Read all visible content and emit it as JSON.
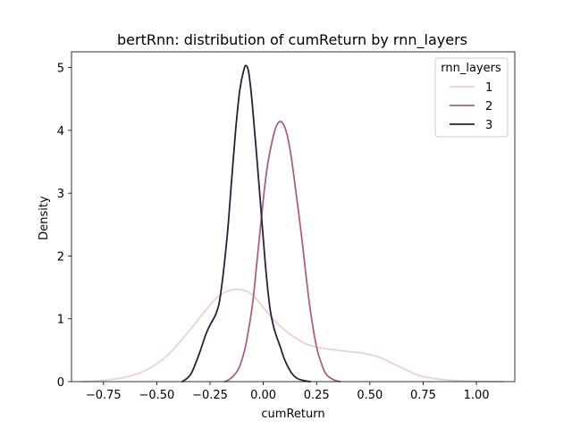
{
  "chart_data": {
    "type": "line",
    "title": "bertRnn: distribution of cumReturn by rnn_layers",
    "xlabel": "cumReturn",
    "ylabel": "Density",
    "xlim": [
      -0.9,
      1.18
    ],
    "ylim": [
      0,
      5.25
    ],
    "xticks": [
      -0.75,
      -0.5,
      -0.25,
      0.0,
      0.25,
      0.5,
      0.75,
      1.0
    ],
    "xtick_labels": [
      "−0.75",
      "−0.50",
      "−0.25",
      "0.00",
      "0.25",
      "0.50",
      "0.75",
      "1.00"
    ],
    "yticks": [
      0,
      1,
      2,
      3,
      4,
      5
    ],
    "ytick_labels": [
      "0",
      "1",
      "2",
      "3",
      "4",
      "5"
    ],
    "grid": false,
    "legend": {
      "title": "rnn_layers",
      "placement": "top-right"
    },
    "series": [
      {
        "name": "1",
        "color": "#edd1cb",
        "x": [
          -0.85,
          -0.75,
          -0.65,
          -0.55,
          -0.45,
          -0.35,
          -0.25,
          -0.2,
          -0.15,
          -0.1,
          -0.05,
          0.0,
          0.05,
          0.1,
          0.15,
          0.2,
          0.25,
          0.3,
          0.35,
          0.4,
          0.45,
          0.5,
          0.55,
          0.6,
          0.65,
          0.7,
          0.75,
          0.85,
          0.95,
          1.05,
          1.13
        ],
        "y": [
          0.0,
          0.02,
          0.07,
          0.18,
          0.42,
          0.8,
          1.22,
          1.38,
          1.46,
          1.46,
          1.38,
          1.18,
          0.98,
          0.82,
          0.7,
          0.6,
          0.55,
          0.52,
          0.5,
          0.48,
          0.46,
          0.43,
          0.38,
          0.3,
          0.22,
          0.14,
          0.08,
          0.03,
          0.01,
          0.003,
          0.0
        ]
      },
      {
        "name": "2",
        "color": "#a8608a",
        "x": [
          -0.18,
          -0.15,
          -0.12,
          -0.1,
          -0.08,
          -0.05,
          -0.03,
          0.0,
          0.02,
          0.05,
          0.07,
          0.09,
          0.11,
          0.13,
          0.15,
          0.18,
          0.2,
          0.22,
          0.25,
          0.28,
          0.3,
          0.33,
          0.36
        ],
        "y": [
          0.0,
          0.06,
          0.18,
          0.35,
          0.62,
          1.25,
          1.9,
          2.9,
          3.45,
          3.95,
          4.12,
          4.12,
          3.95,
          3.6,
          3.1,
          2.3,
          1.7,
          1.15,
          0.55,
          0.22,
          0.1,
          0.03,
          0.0
        ]
      },
      {
        "name": "3",
        "color": "#2d1e3e",
        "x": [
          -0.38,
          -0.34,
          -0.3,
          -0.27,
          -0.25,
          -0.22,
          -0.2,
          -0.17,
          -0.15,
          -0.13,
          -0.11,
          -0.09,
          -0.08,
          -0.07,
          -0.06,
          -0.05,
          -0.03,
          -0.01,
          0.01,
          0.03,
          0.05,
          0.08,
          0.1,
          0.13,
          0.16,
          0.2,
          0.22
        ],
        "y": [
          0.0,
          0.12,
          0.45,
          0.75,
          0.9,
          1.1,
          1.4,
          2.3,
          3.15,
          4.0,
          4.65,
          4.98,
          5.03,
          4.95,
          4.7,
          4.35,
          3.55,
          2.7,
          1.85,
          1.2,
          0.85,
          0.55,
          0.35,
          0.15,
          0.05,
          0.01,
          0.0
        ]
      }
    ]
  }
}
